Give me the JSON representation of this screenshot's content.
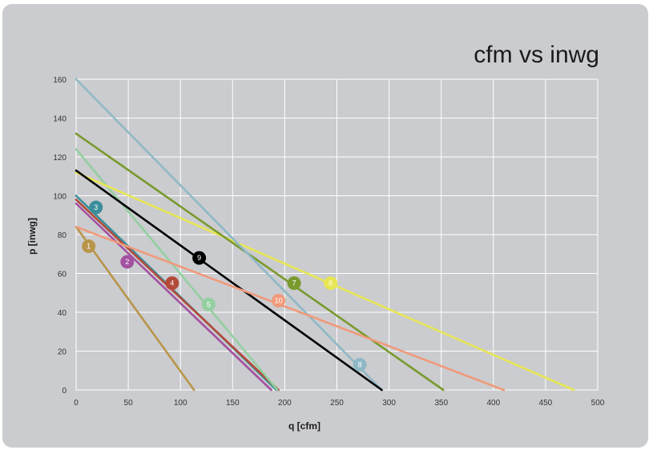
{
  "chart_data": {
    "type": "line",
    "title": "cfm vs inwg",
    "xlabel": "q [cfm]",
    "ylabel": "p [inwg]",
    "xlim": [
      0,
      500
    ],
    "ylim": [
      0,
      160
    ],
    "xticks": [
      0,
      50,
      100,
      150,
      200,
      250,
      300,
      350,
      400,
      450,
      500
    ],
    "yticks": [
      0,
      20,
      40,
      60,
      80,
      100,
      120,
      140,
      160
    ],
    "grid": true,
    "background": "#cbcccf",
    "grid_color": "#ffffff",
    "series": [
      {
        "name": "1",
        "color": "#b8954a",
        "x0": 0,
        "y0": 84,
        "x1": 113,
        "y1": 0,
        "marker": [
          12,
          74
        ]
      },
      {
        "name": "2",
        "color": "#a351a1",
        "x0": 0,
        "y0": 96,
        "x1": 187,
        "y1": 0,
        "marker": [
          49,
          66
        ]
      },
      {
        "name": "3",
        "color": "#3a8f9b",
        "x0": 0,
        "y0": 100,
        "x1": 192,
        "y1": 0,
        "marker": [
          19,
          94
        ]
      },
      {
        "name": "4",
        "color": "#b34a3a",
        "x0": 0,
        "y0": 98,
        "x1": 194,
        "y1": 0,
        "marker": [
          92,
          55
        ]
      },
      {
        "name": "5",
        "color": "#93cfa0",
        "x0": 0,
        "y0": 124,
        "x1": 193,
        "y1": 0,
        "marker": [
          127,
          44
        ]
      },
      {
        "name": "6",
        "color": "#e8e654",
        "x0": 0,
        "y0": 112,
        "x1": 477,
        "y1": 0,
        "marker": [
          244,
          55
        ]
      },
      {
        "name": "7",
        "color": "#7a9a2e",
        "x0": 0,
        "y0": 132,
        "x1": 352,
        "y1": 0,
        "marker": [
          209,
          55
        ]
      },
      {
        "name": "8",
        "color": "#8fb8c6",
        "x0": 0,
        "y0": 160,
        "x1": 293,
        "y1": 0,
        "marker": [
          272,
          13
        ]
      },
      {
        "name": "9",
        "color": "#000000",
        "x0": 0,
        "y0": 113,
        "x1": 293,
        "y1": 0,
        "marker": [
          118,
          68
        ]
      },
      {
        "name": "10",
        "color": "#f09a7a",
        "x0": 0,
        "y0": 84,
        "x1": 410,
        "y1": 0,
        "marker": [
          194,
          46
        ]
      }
    ]
  }
}
